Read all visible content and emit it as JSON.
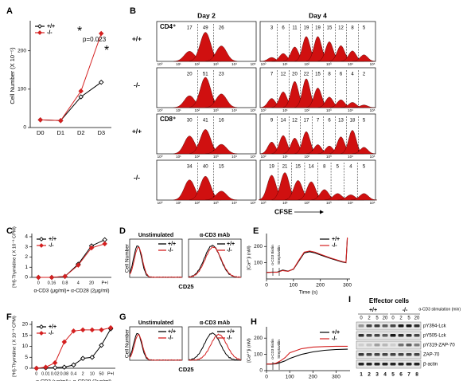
{
  "chart_data": [
    {
      "type": "line",
      "label": "A",
      "ylabel": "Cell Number (X 10⁻⁵)",
      "categories": [
        "D0",
        "D1",
        "D2",
        "D3"
      ],
      "ylim": [
        0,
        270
      ],
      "yticks": [
        0,
        100,
        200
      ],
      "legend": "upper left",
      "markers": true,
      "series": [
        {
          "name": "+/+",
          "color": "#000000",
          "marker_fill": "#ffffff",
          "values": [
            20,
            18,
            80,
            118
          ]
        },
        {
          "name": "-/-",
          "color": "#d42020",
          "marker_fill": "#d42020",
          "values": [
            20,
            18,
            95,
            245
          ]
        }
      ],
      "annotations": [
        "*",
        "p=0.023",
        "*"
      ]
    },
    {
      "type": "line",
      "label": "C",
      "ylabel": "[³H]-Thymidine ( X 10⁻³ CPM)",
      "xlabel": "α-CD3 (μg/ml)+ α-CD28 (2μg/ml)",
      "categories": [
        "0",
        "0.16",
        "0.8",
        "4",
        "20",
        "P+I"
      ],
      "ylim": [
        0,
        4
      ],
      "yticks": [
        0,
        1,
        2,
        3,
        4
      ],
      "legend": "upper left",
      "markers": true,
      "series": [
        {
          "name": "+/+",
          "color": "#000000",
          "marker_fill": "#ffffff",
          "values": [
            0,
            0,
            0.1,
            1.3,
            3.1,
            3.7
          ]
        },
        {
          "name": "-/-",
          "color": "#d42020",
          "marker_fill": "#d42020",
          "values": [
            0,
            0,
            0.1,
            1.2,
            2.9,
            3.3
          ]
        }
      ]
    },
    {
      "type": "line",
      "label": "E",
      "ylabel": "[Ca²⁺]i (nM)",
      "xlabel": "Time (s)",
      "x": [
        0,
        20,
        40,
        60,
        80,
        100,
        120,
        140,
        160,
        180,
        200,
        240,
        280,
        295,
        300
      ],
      "xlim": [
        0,
        310
      ],
      "xticks": [
        0,
        100,
        200,
        300
      ],
      "ylim": [
        0,
        260
      ],
      "yticks": [
        100,
        200
      ],
      "legend": "upper right",
      "markers": false,
      "series": [
        {
          "name": "+/+",
          "color": "#000000",
          "values": [
            40,
            42,
            42,
            55,
            48,
            60,
            110,
            160,
            168,
            160,
            148,
            125,
            105,
            100,
            250
          ]
        },
        {
          "name": "-/-",
          "color": "#d42020",
          "values": [
            40,
            41,
            41,
            52,
            47,
            62,
            115,
            165,
            172,
            165,
            152,
            128,
            108,
            102,
            255
          ]
        }
      ],
      "annotations": [
        "α-CD3 Biotin",
        "Streptavidin"
      ]
    },
    {
      "type": "line",
      "label": "F",
      "ylabel": "[³H]-Thymidine ( X 10⁻³ CPM)",
      "xlabel": "α-CD3 (μg/ml)+ α-CD28 (2μg/ml)",
      "categories": [
        "0",
        "0.01",
        "0.02",
        "0.08",
        "0.4",
        "2",
        "10",
        "50",
        "P+I"
      ],
      "ylim": [
        0,
        20
      ],
      "yticks": [
        0,
        5,
        10,
        15,
        20
      ],
      "legend": "upper left",
      "markers": true,
      "series": [
        {
          "name": "+/+",
          "color": "#000000",
          "marker_fill": "#ffffff",
          "values": [
            0,
            0.2,
            0.3,
            0.5,
            1.5,
            4.5,
            5,
            10.5,
            18
          ]
        },
        {
          "name": "-/-",
          "color": "#d42020",
          "marker_fill": "#d42020",
          "values": [
            0,
            0.5,
            2.5,
            12,
            17,
            17.5,
            17.5,
            17.5,
            18.5
          ]
        }
      ]
    },
    {
      "type": "line",
      "label": "H",
      "ylabel": "[Ca²⁺]i (nM)",
      "xlabel": "Time (s)",
      "x": [
        0,
        20,
        40,
        60,
        80,
        100,
        150,
        200,
        250,
        300,
        350
      ],
      "xlim": [
        0,
        360
      ],
      "xticks": [
        0,
        100,
        200,
        300
      ],
      "ylim": [
        0,
        250
      ],
      "yticks": [
        0,
        100,
        200
      ],
      "legend": "upper right",
      "markers": false,
      "series": [
        {
          "name": "+/+",
          "color": "#000000",
          "values": [
            40,
            40,
            42,
            50,
            60,
            75,
            100,
            115,
            125,
            130,
            132
          ]
        },
        {
          "name": "-/-",
          "color": "#d42020",
          "values": [
            40,
            41,
            45,
            60,
            80,
            110,
            135,
            145,
            148,
            150,
            150
          ]
        }
      ],
      "annotations": [
        "α-CD3 Biotin",
        "Streptavidin"
      ]
    }
  ],
  "flow": {
    "label": "B",
    "columns": [
      "Day 2",
      "Day 4"
    ],
    "xlabel": "CFSE",
    "xtick_labels": [
      "10⁰",
      "10¹",
      "10²",
      "10³",
      "10⁴",
      "10⁵"
    ],
    "rows": [
      {
        "population": "CD4⁺",
        "genotype": "+/+",
        "day2": [
          17,
          49,
          26
        ],
        "day4": [
          3,
          6,
          11,
          19,
          19,
          15,
          12,
          8,
          5
        ]
      },
      {
        "genotype": "-/-",
        "day2": [
          20,
          51,
          23
        ],
        "day4": [
          7,
          12,
          20,
          22,
          15,
          8,
          6,
          4,
          2
        ]
      },
      {
        "population": "CD8⁺",
        "genotype": "+/+",
        "day2": [
          30,
          41,
          16
        ],
        "day4": [
          9,
          14,
          12,
          17,
          7,
          6,
          13,
          18,
          5
        ]
      },
      {
        "genotype": "-/-",
        "day2": [
          34,
          40,
          15
        ],
        "day4": [
          19,
          21,
          15,
          14,
          8,
          5,
          4,
          5
        ]
      }
    ]
  },
  "cd25": [
    {
      "label": "D",
      "titles": [
        "Unstimulated",
        "α-CD3 mAb"
      ],
      "ylabel": "Cell Number",
      "xlabel": "CD25",
      "legend": [
        "+/+",
        "-/-"
      ]
    },
    {
      "label": "G",
      "titles": [
        "Unstimulated",
        "α-CD3 mAb"
      ],
      "ylabel": "Cell Number",
      "xlabel": "CD25",
      "legend": [
        "+/+",
        "-/-"
      ]
    }
  ],
  "blot": {
    "label": "I",
    "title": "Effector cells",
    "stimulation": "α-CD3 stimulation (min)",
    "genotypes": [
      "+/+",
      "-/-"
    ],
    "times": [
      0,
      2,
      5,
      20,
      0,
      2,
      5,
      20
    ],
    "rows": [
      "pY394-Lck",
      "pY505-Lck",
      "pY319-ZAP-70",
      "ZAP-70",
      "β-actin"
    ],
    "lanes": [
      1,
      2,
      3,
      4,
      5,
      6,
      7,
      8
    ]
  }
}
